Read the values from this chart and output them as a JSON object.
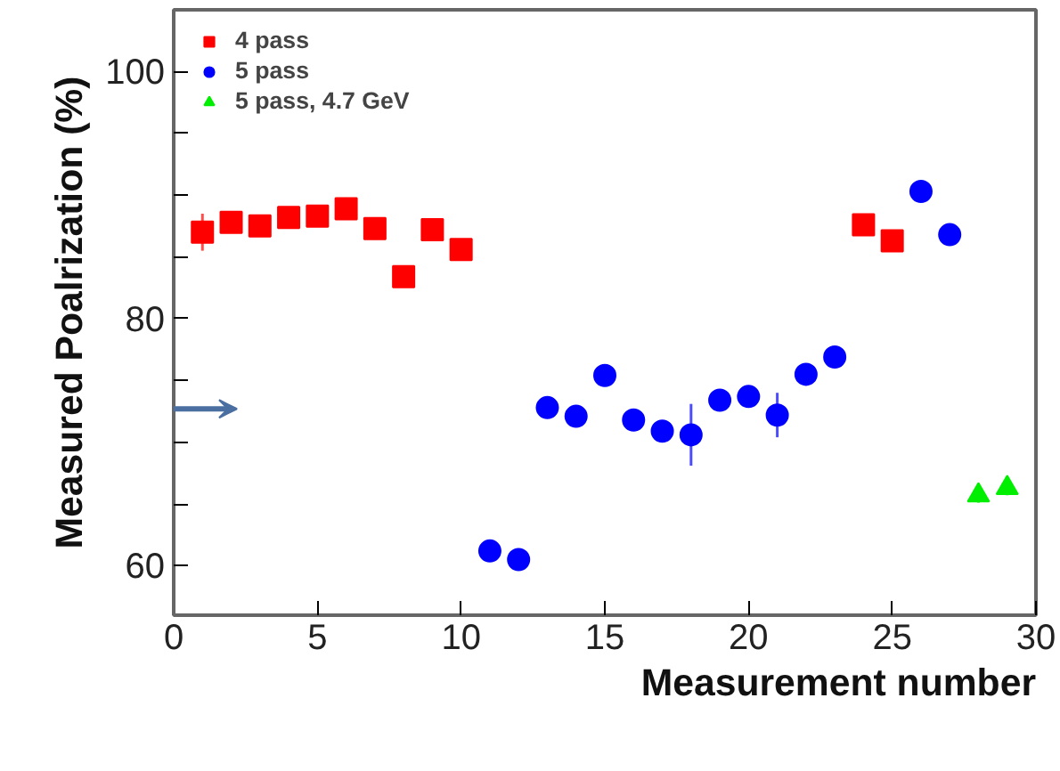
{
  "chart_data": {
    "type": "scatter",
    "xlabel": "Measurement number",
    "ylabel": "Measured Poalrization (%)",
    "xlim": [
      0,
      30
    ],
    "xticks": [
      0,
      5,
      10,
      15,
      20,
      25,
      30
    ],
    "ylim": [
      56,
      105
    ],
    "yticks": [
      60,
      {
        "value": 65,
        "label": null
      },
      {
        "value": 70,
        "label": null
      },
      {
        "value": 75,
        "label": null
      },
      80,
      {
        "value": 85,
        "label": null
      },
      {
        "value": 90,
        "label": null
      },
      {
        "value": 95,
        "label": null
      },
      100
    ],
    "legend": "top left",
    "grid": false,
    "series": [
      {
        "name": "4 pass",
        "color": "#ff0000",
        "marker": "square",
        "x": [
          1,
          2,
          3,
          4,
          5,
          6,
          7,
          8,
          9,
          10,
          24,
          25
        ],
        "values": [
          87.0,
          87.8,
          87.5,
          88.2,
          88.3,
          88.9,
          87.3,
          83.4,
          87.2,
          85.6,
          87.6,
          86.3
        ],
        "errors": [
          1.5,
          0.8,
          0.8,
          0.8,
          0.8,
          0.9,
          0.9,
          0.8,
          null,
          null,
          0.6,
          0.8
        ]
      },
      {
        "name": "5 pass",
        "color": "#0000ff",
        "marker": "circle",
        "x": [
          11,
          12,
          13,
          14,
          15,
          16,
          17,
          18,
          19,
          20,
          21,
          22,
          23,
          26,
          27
        ],
        "values": [
          61.2,
          60.5,
          72.8,
          72.1,
          75.4,
          71.8,
          70.9,
          70.6,
          73.4,
          73.7,
          72.2,
          75.5,
          76.9,
          90.3,
          86.8
        ],
        "errors": [
          0.8,
          0.8,
          0.8,
          0.8,
          0.8,
          0.8,
          0.8,
          2.5,
          0.8,
          0.8,
          1.8,
          0.8,
          0.8,
          0.8,
          0.8
        ]
      },
      {
        "name": "5 pass, 4.7 GeV",
        "color": "#00ee00",
        "marker": "triangle",
        "x": [
          28,
          29
        ],
        "values": [
          65.7,
          66.3
        ],
        "errors": [
          0.6,
          0.6
        ]
      }
    ]
  }
}
